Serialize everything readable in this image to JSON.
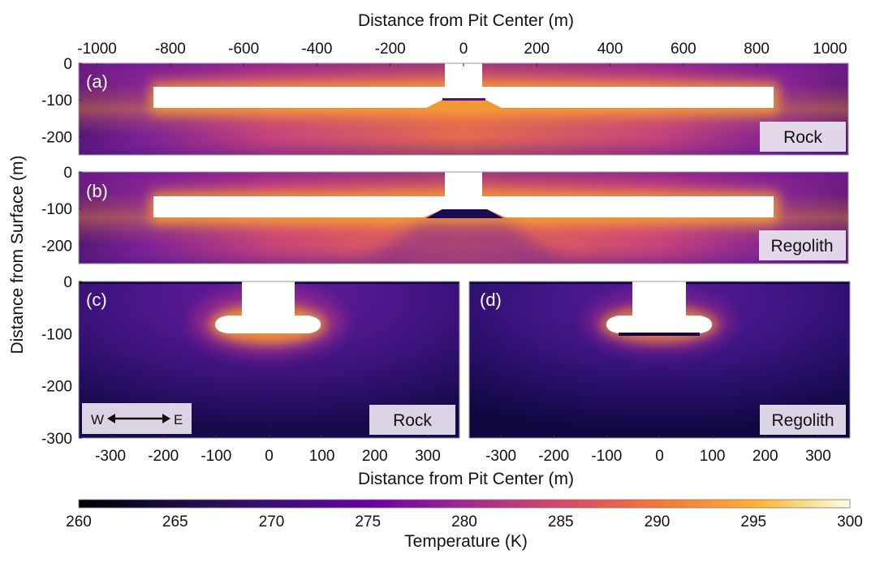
{
  "chart_data": {
    "type": "heatmap",
    "top_xlabel": "Distance from Pit Center (m)",
    "bottom_xlabel": "Distance from Pit Center (m)",
    "ylabel": "Distance from Surface (m)",
    "colorbar": {
      "label": "Temperature (K)",
      "range": [
        260,
        300
      ],
      "ticks": [
        260,
        265,
        270,
        275,
        280,
        285,
        290,
        295,
        300
      ],
      "colormap": "plasma",
      "colors": [
        "#0d0887",
        "#5c01a6",
        "#9c179e",
        "#cc4778",
        "#ed7953",
        "#fdb42f",
        "#f0f921"
      ]
    },
    "panels": [
      {
        "label": "(a)",
        "material": "Rock",
        "xlim": [
          -1050,
          1050
        ],
        "ylim": [
          -250,
          0
        ],
        "xticks": [
          -1000,
          -800,
          -600,
          -400,
          -200,
          0,
          200,
          400,
          600,
          800,
          1000
        ],
        "yticks": [
          0,
          -100,
          -200
        ],
        "ytick_labels": [
          "0",
          "-100",
          "-200"
        ],
        "tube_depth_range": [
          -65,
          -120
        ],
        "tube_x_range": [
          -850,
          850
        ],
        "pit_x_range": [
          -50,
          50
        ],
        "floor_type": "rock"
      },
      {
        "label": "(b)",
        "material": "Regolith",
        "xlim": [
          -1050,
          1050
        ],
        "ylim": [
          -250,
          0
        ],
        "yticks": [
          0,
          -100,
          -200
        ],
        "ytick_labels": [
          "0",
          "-100",
          "-200"
        ],
        "tube_depth_range": [
          -65,
          -120
        ],
        "tube_x_range": [
          -850,
          850
        ],
        "pit_x_range": [
          -50,
          50
        ],
        "floor_type": "regolith"
      },
      {
        "label": "(c)",
        "material": "Rock",
        "xlim": [
          -360,
          360
        ],
        "ylim": [
          -300,
          0
        ],
        "xticks": [
          -300,
          -200,
          -100,
          0,
          100,
          200,
          300
        ],
        "yticks": [
          0,
          -100,
          -200,
          -300
        ],
        "ytick_labels": [
          "0",
          "-100",
          "-200",
          "-300"
        ],
        "direction": {
          "west": "W",
          "east": "E"
        },
        "floor_type": "rock"
      },
      {
        "label": "(d)",
        "material": "Regolith",
        "xlim": [
          -360,
          360
        ],
        "ylim": [
          -300,
          0
        ],
        "xticks": [
          -300,
          -200,
          -100,
          0,
          100,
          200,
          300
        ],
        "floor_type": "regolith"
      }
    ]
  }
}
